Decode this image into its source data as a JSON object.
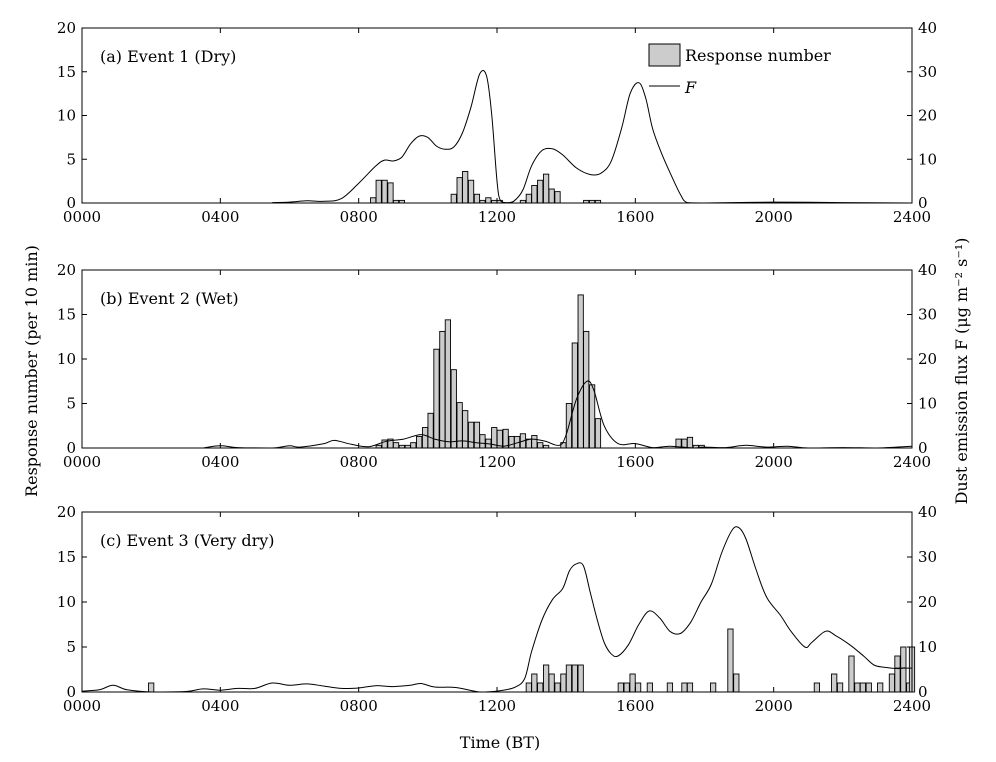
{
  "figure": {
    "xlabel": "Time (BT)",
    "ylabel_left": "Response number (per 10 min)",
    "ylabel_right": "Dust emission flux F (μg m⁻² s⁻¹)"
  },
  "legend": {
    "bar_label": "Response number",
    "line_label": "F"
  },
  "colors": {
    "bar_fill": "#cccccc",
    "bar_stroke": "#000000",
    "line": "#000000"
  },
  "chart_data": [
    {
      "type": "bar",
      "title": "(a) Event 1 (Dry)",
      "xlim": [
        0,
        24
      ],
      "ylim_left": [
        0,
        20
      ],
      "ylim_right": [
        0,
        40
      ],
      "x_ticks": [
        "0000",
        "0400",
        "0800",
        "1200",
        "1600",
        "2000",
        "2400"
      ],
      "y_ticks_left": [
        0,
        5,
        10,
        15,
        20
      ],
      "y_ticks_right": [
        0,
        10,
        20,
        30,
        40
      ],
      "bars": [
        [
          8.42,
          0.6
        ],
        [
          8.58,
          2.6
        ],
        [
          8.75,
          2.6
        ],
        [
          8.92,
          2.3
        ],
        [
          9.08,
          0.3
        ],
        [
          9.25,
          0.3
        ],
        [
          10.75,
          1.0
        ],
        [
          10.92,
          2.9
        ],
        [
          11.08,
          3.6
        ],
        [
          11.25,
          2.6
        ],
        [
          11.42,
          1.0
        ],
        [
          11.58,
          0.3
        ],
        [
          11.75,
          0.6
        ],
        [
          11.92,
          0.3
        ],
        [
          12.08,
          0.3
        ],
        [
          12.75,
          0.3
        ],
        [
          12.92,
          1.0
        ],
        [
          13.08,
          2.0
        ],
        [
          13.25,
          2.6
        ],
        [
          13.42,
          3.3
        ],
        [
          13.58,
          1.6
        ],
        [
          13.75,
          1.3
        ],
        [
          14.58,
          0.3
        ],
        [
          14.75,
          0.3
        ],
        [
          14.92,
          0.3
        ]
      ],
      "flux": [
        [
          5.5,
          0.1
        ],
        [
          6.0,
          0.2
        ],
        [
          6.5,
          0.5
        ],
        [
          7.0,
          0.4
        ],
        [
          7.5,
          1.0
        ],
        [
          8.0,
          4.5
        ],
        [
          8.5,
          8.5
        ],
        [
          8.75,
          9.8
        ],
        [
          9.0,
          9.6
        ],
        [
          9.25,
          10.5
        ],
        [
          9.5,
          13.5
        ],
        [
          9.75,
          15.3
        ],
        [
          10.0,
          15.0
        ],
        [
          10.25,
          13.0
        ],
        [
          10.5,
          12.3
        ],
        [
          10.75,
          12.8
        ],
        [
          11.0,
          16.0
        ],
        [
          11.25,
          22.0
        ],
        [
          11.5,
          29.5
        ],
        [
          11.7,
          29.0
        ],
        [
          11.85,
          20.0
        ],
        [
          12.0,
          5.0
        ],
        [
          12.1,
          0.5
        ],
        [
          12.3,
          0.1
        ],
        [
          12.5,
          0.5
        ],
        [
          12.75,
          3.0
        ],
        [
          13.0,
          8.5
        ],
        [
          13.3,
          12.0
        ],
        [
          13.6,
          12.4
        ],
        [
          13.9,
          11.0
        ],
        [
          14.3,
          8.0
        ],
        [
          14.7,
          6.5
        ],
        [
          15.0,
          6.8
        ],
        [
          15.3,
          9.5
        ],
        [
          15.6,
          17.0
        ],
        [
          15.85,
          25.0
        ],
        [
          16.1,
          27.5
        ],
        [
          16.3,
          24.0
        ],
        [
          16.5,
          17.0
        ],
        [
          16.75,
          11.5
        ],
        [
          17.0,
          7.0
        ],
        [
          17.3,
          2.0
        ],
        [
          17.5,
          0.1
        ],
        [
          18.0,
          0.0
        ],
        [
          20.0,
          0.2
        ],
        [
          22.0,
          0.1
        ],
        [
          24.0,
          0.0
        ]
      ]
    },
    {
      "type": "bar",
      "title": "(b) Event 2 (Wet)",
      "xlim": [
        0,
        24
      ],
      "ylim_left": [
        0,
        20
      ],
      "ylim_right": [
        0,
        40
      ],
      "x_ticks": [
        "0000",
        "0400",
        "0800",
        "1200",
        "1600",
        "2000",
        "2400"
      ],
      "y_ticks_left": [
        0,
        5,
        10,
        15,
        20
      ],
      "y_ticks_right": [
        0,
        10,
        20,
        30,
        40
      ],
      "bars": [
        [
          8.58,
          0.3
        ],
        [
          8.75,
          0.9
        ],
        [
          8.92,
          1.0
        ],
        [
          9.08,
          0.6
        ],
        [
          9.25,
          0.3
        ],
        [
          9.42,
          0.3
        ],
        [
          9.58,
          0.6
        ],
        [
          9.75,
          1.3
        ],
        [
          9.92,
          2.3
        ],
        [
          10.08,
          3.9
        ],
        [
          10.25,
          11.1
        ],
        [
          10.42,
          13.1
        ],
        [
          10.58,
          14.4
        ],
        [
          10.75,
          8.8
        ],
        [
          10.92,
          5.1
        ],
        [
          11.08,
          4.2
        ],
        [
          11.25,
          2.9
        ],
        [
          11.42,
          2.9
        ],
        [
          11.58,
          1.5
        ],
        [
          11.75,
          1.0
        ],
        [
          11.92,
          2.3
        ],
        [
          12.08,
          2.0
        ],
        [
          12.25,
          2.1
        ],
        [
          12.42,
          1.3
        ],
        [
          12.58,
          1.3
        ],
        [
          12.75,
          1.6
        ],
        [
          12.92,
          1.0
        ],
        [
          13.08,
          1.4
        ],
        [
          13.25,
          0.6
        ],
        [
          13.42,
          0.3
        ],
        [
          13.92,
          0.6
        ],
        [
          14.08,
          5.0
        ],
        [
          14.25,
          11.8
        ],
        [
          14.42,
          17.2
        ],
        [
          14.58,
          13.1
        ],
        [
          14.75,
          7.1
        ],
        [
          14.92,
          3.3
        ],
        [
          17.25,
          1.0
        ],
        [
          17.42,
          1.0
        ],
        [
          17.58,
          1.2
        ],
        [
          17.75,
          0.3
        ],
        [
          17.92,
          0.3
        ]
      ],
      "flux": [
        [
          3.5,
          0.0
        ],
        [
          4.0,
          0.5
        ],
        [
          4.5,
          0.1
        ],
        [
          5.5,
          0.0
        ],
        [
          6.0,
          0.5
        ],
        [
          6.3,
          0.2
        ],
        [
          7.0,
          1.0
        ],
        [
          7.3,
          1.7
        ],
        [
          7.8,
          0.8
        ],
        [
          8.3,
          0.3
        ],
        [
          8.8,
          1.5
        ],
        [
          9.3,
          2.0
        ],
        [
          9.8,
          3.0
        ],
        [
          10.2,
          2.0
        ],
        [
          10.6,
          1.4
        ],
        [
          11.0,
          1.6
        ],
        [
          11.4,
          1.2
        ],
        [
          11.8,
          0.9
        ],
        [
          12.2,
          0.4
        ],
        [
          12.6,
          1.2
        ],
        [
          13.0,
          2.0
        ],
        [
          13.4,
          1.5
        ],
        [
          13.8,
          0.6
        ],
        [
          14.0,
          3.0
        ],
        [
          14.3,
          11.0
        ],
        [
          14.6,
          15.0
        ],
        [
          14.8,
          13.0
        ],
        [
          15.1,
          5.0
        ],
        [
          15.5,
          1.0
        ],
        [
          16.0,
          1.0
        ],
        [
          16.5,
          0.1
        ],
        [
          17.0,
          0.4
        ],
        [
          17.7,
          0.0
        ],
        [
          18.0,
          0.2
        ],
        [
          18.6,
          0.1
        ],
        [
          19.2,
          0.6
        ],
        [
          19.8,
          0.2
        ],
        [
          20.4,
          0.4
        ],
        [
          21.0,
          0.0
        ],
        [
          22.0,
          0.1
        ],
        [
          23.0,
          0.0
        ],
        [
          24.0,
          0.4
        ]
      ]
    },
    {
      "type": "bar",
      "title": "(c) Event 3 (Very dry)",
      "xlim": [
        0,
        24
      ],
      "ylim_left": [
        0,
        20
      ],
      "ylim_right": [
        0,
        40
      ],
      "x_ticks": [
        "0000",
        "0400",
        "0800",
        "1200",
        "1600",
        "2000",
        "2400"
      ],
      "y_ticks_left": [
        0,
        5,
        10,
        15,
        20
      ],
      "y_ticks_right": [
        0,
        10,
        20,
        30,
        40
      ],
      "bars": [
        [
          2.0,
          1.0
        ],
        [
          12.92,
          1.0
        ],
        [
          13.08,
          2.0
        ],
        [
          13.25,
          1.0
        ],
        [
          13.42,
          3.0
        ],
        [
          13.58,
          2.0
        ],
        [
          13.75,
          1.0
        ],
        [
          13.92,
          2.0
        ],
        [
          14.08,
          3.0
        ],
        [
          14.25,
          3.0
        ],
        [
          14.42,
          3.0
        ],
        [
          15.58,
          1.0
        ],
        [
          15.75,
          1.0
        ],
        [
          15.92,
          2.0
        ],
        [
          16.08,
          1.0
        ],
        [
          16.42,
          1.0
        ],
        [
          17.0,
          1.0
        ],
        [
          17.42,
          1.0
        ],
        [
          17.58,
          1.0
        ],
        [
          18.25,
          1.0
        ],
        [
          18.75,
          7.0
        ],
        [
          18.92,
          2.0
        ],
        [
          21.25,
          1.0
        ],
        [
          21.75,
          2.0
        ],
        [
          21.92,
          1.0
        ],
        [
          22.25,
          4.0
        ],
        [
          22.42,
          1.0
        ],
        [
          22.58,
          1.0
        ],
        [
          22.75,
          1.0
        ],
        [
          23.08,
          1.0
        ],
        [
          23.42,
          2.0
        ],
        [
          23.58,
          4.0
        ],
        [
          23.75,
          5.0
        ],
        [
          23.92,
          1.0
        ],
        [
          24.0,
          5.0
        ]
      ],
      "flux": [
        [
          0.0,
          0.2
        ],
        [
          0.5,
          0.5
        ],
        [
          0.9,
          1.5
        ],
        [
          1.3,
          0.5
        ],
        [
          2.0,
          0.0
        ],
        [
          3.0,
          0.1
        ],
        [
          3.5,
          0.7
        ],
        [
          4.0,
          0.4
        ],
        [
          4.5,
          0.8
        ],
        [
          5.0,
          0.8
        ],
        [
          5.5,
          2.0
        ],
        [
          6.0,
          1.5
        ],
        [
          6.5,
          1.8
        ],
        [
          7.0,
          1.3
        ],
        [
          7.5,
          0.8
        ],
        [
          8.0,
          0.9
        ],
        [
          8.5,
          1.4
        ],
        [
          9.0,
          1.2
        ],
        [
          9.5,
          1.5
        ],
        [
          9.8,
          1.9
        ],
        [
          10.2,
          1.1
        ],
        [
          10.8,
          1.0
        ],
        [
          11.5,
          0.0
        ],
        [
          12.0,
          0.2
        ],
        [
          12.5,
          1.0
        ],
        [
          12.8,
          3.0
        ],
        [
          13.0,
          9.0
        ],
        [
          13.3,
          16.0
        ],
        [
          13.6,
          20.5
        ],
        [
          13.9,
          23.0
        ],
        [
          14.1,
          27.0
        ],
        [
          14.3,
          28.5
        ],
        [
          14.5,
          28.0
        ],
        [
          14.7,
          22.0
        ],
        [
          14.9,
          16.0
        ],
        [
          15.1,
          11.0
        ],
        [
          15.3,
          8.5
        ],
        [
          15.5,
          8.0
        ],
        [
          15.8,
          10.5
        ],
        [
          16.1,
          15.0
        ],
        [
          16.4,
          18.0
        ],
        [
          16.7,
          16.5
        ],
        [
          17.0,
          13.5
        ],
        [
          17.3,
          13.0
        ],
        [
          17.6,
          15.5
        ],
        [
          17.9,
          20.0
        ],
        [
          18.2,
          24.0
        ],
        [
          18.5,
          31.0
        ],
        [
          18.8,
          36.0
        ],
        [
          19.0,
          36.5
        ],
        [
          19.2,
          34.0
        ],
        [
          19.5,
          27.0
        ],
        [
          19.8,
          21.0
        ],
        [
          20.2,
          17.0
        ],
        [
          20.5,
          13.5
        ],
        [
          20.9,
          10.0
        ],
        [
          21.1,
          11.0
        ],
        [
          21.5,
          13.5
        ],
        [
          21.8,
          12.5
        ],
        [
          22.2,
          10.5
        ],
        [
          22.6,
          8.0
        ],
        [
          22.9,
          6.0
        ],
        [
          23.2,
          5.5
        ],
        [
          23.6,
          5.2
        ],
        [
          23.8,
          5.4
        ]
      ],
      "flux_flat": [
        [
          23.5,
          5.3
        ],
        [
          24.0,
          5.3
        ]
      ]
    }
  ]
}
